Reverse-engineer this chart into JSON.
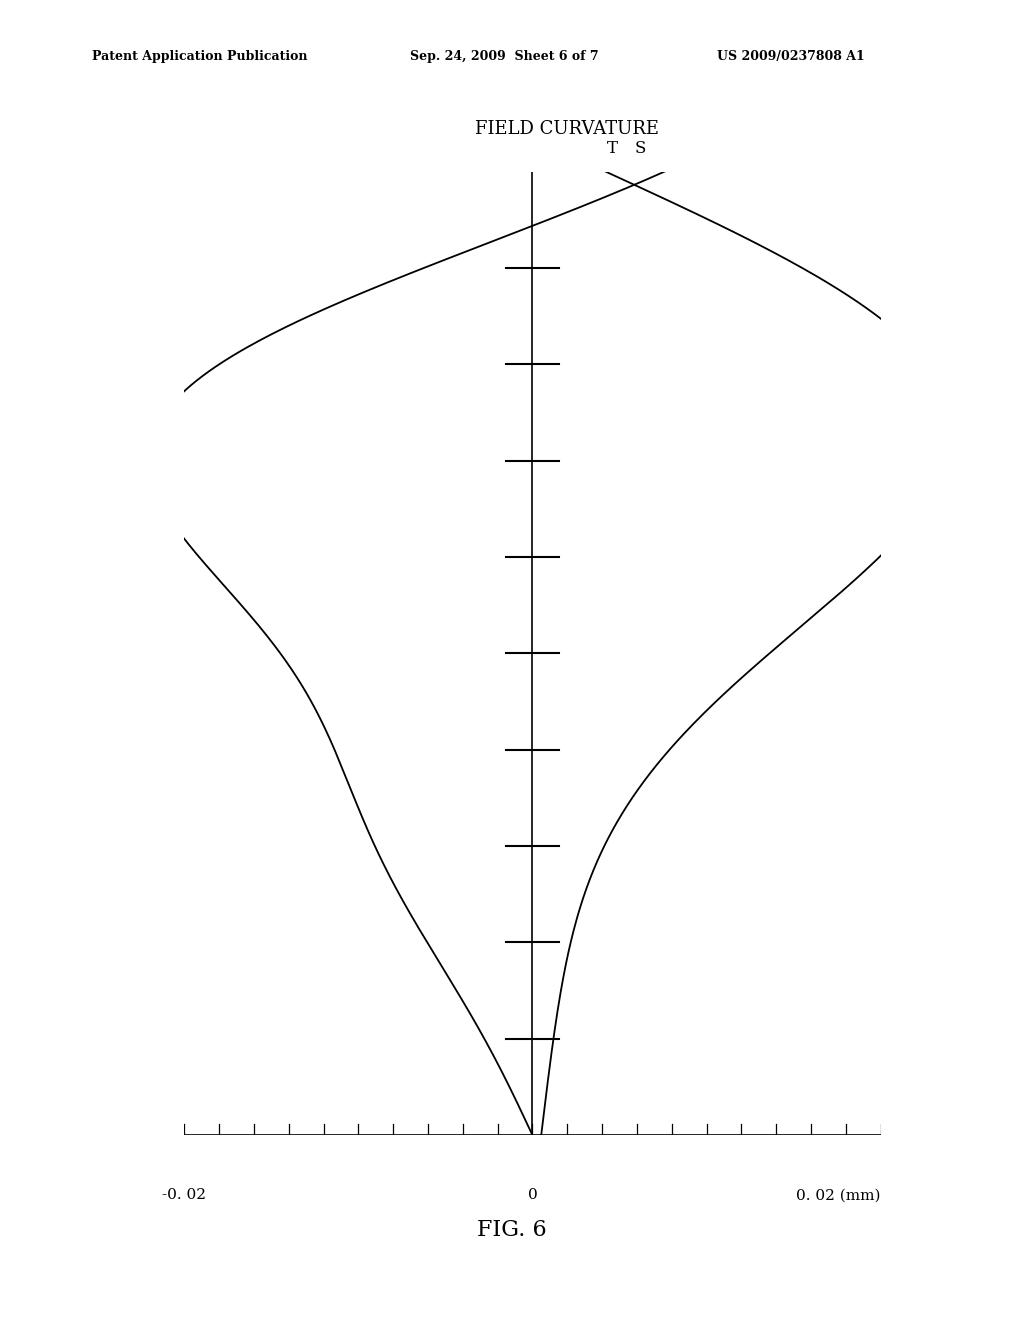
{
  "title": "FIELD CURVATURE",
  "xlabel_right": "0. 02 (mm)",
  "xlabel_left": "-0. 02",
  "xlabel_center": "0",
  "label_T": "T",
  "label_S": "S",
  "header_left": "Patent Application Publication",
  "header_center": "Sep. 24, 2009  Sheet 6 of 7",
  "header_right": "US 2009/0237808 A1",
  "fig_label": "FIG. 6",
  "xlim": [
    -0.02,
    0.02
  ],
  "ylim": [
    0.0,
    1.0
  ],
  "background_color": "#ffffff",
  "line_color": "#000000"
}
